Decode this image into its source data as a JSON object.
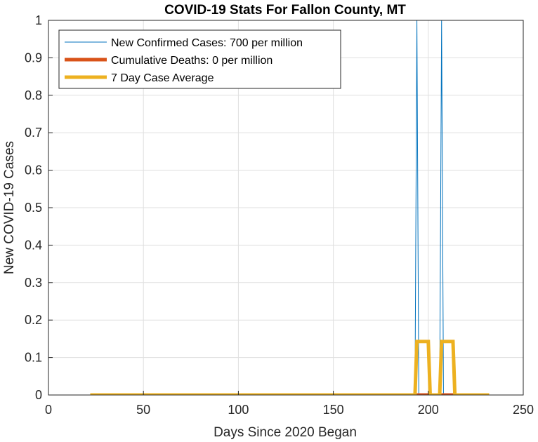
{
  "chart_data": {
    "type": "line",
    "title": "COVID-19 Stats For Fallon County, MT",
    "xlabel": "Days Since 2020 Began",
    "ylabel": "New COVID-19 Cases",
    "xlim": [
      0,
      250
    ],
    "ylim": [
      0,
      1
    ],
    "xticks": [
      0,
      50,
      100,
      150,
      200,
      250
    ],
    "yticks": [
      0,
      0.1,
      0.2,
      0.3,
      0.4,
      0.5,
      0.6,
      0.7,
      0.8,
      0.9,
      1
    ],
    "xtick_labels": [
      "0",
      "50",
      "100",
      "150",
      "200",
      "250"
    ],
    "ytick_labels": [
      "0",
      "0.1",
      "0.2",
      "0.3",
      "0.4",
      "0.5",
      "0.6",
      "0.7",
      "0.8",
      "0.9",
      "1"
    ],
    "grid": true,
    "legend_position": "top-left",
    "series": [
      {
        "name": "New Confirmed Cases: 700 per million",
        "color": "#0072BD",
        "style": "thin",
        "x": [
          22,
          193,
          194,
          195,
          206,
          207,
          208,
          232
        ],
        "y": [
          0,
          0,
          1,
          0,
          0,
          1,
          0,
          0
        ]
      },
      {
        "name": "Cumulative Deaths: 0 per million",
        "color": "#D95319",
        "style": "thick",
        "x": [
          22,
          232
        ],
        "y": [
          0,
          0
        ]
      },
      {
        "name": "7 Day Case Average",
        "color": "#EDB120",
        "style": "thick",
        "x": [
          22,
          193,
          194,
          200,
          201,
          206,
          207,
          213,
          214,
          232
        ],
        "y": [
          0,
          0,
          0.1429,
          0.1429,
          0,
          0,
          0.1429,
          0.1429,
          0,
          0
        ]
      }
    ]
  }
}
